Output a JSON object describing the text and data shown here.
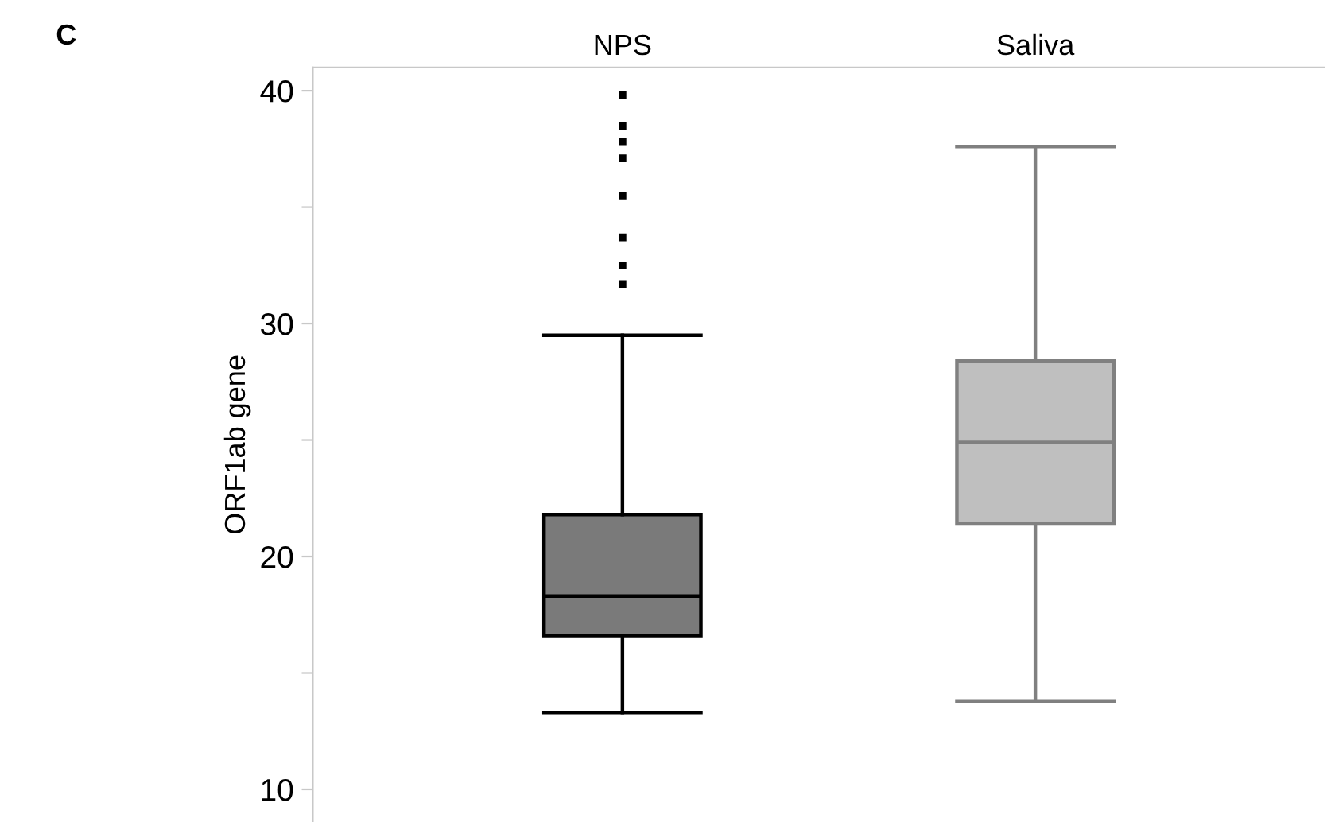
{
  "chart_data": {
    "type": "box",
    "title": "C",
    "ylabel": "ORF1ab gene",
    "categories": [
      "NPS",
      "Saliva"
    ],
    "colors": [
      "#7a7a7a",
      "#bfbfbf"
    ],
    "boxes": [
      {
        "low": 13.3,
        "q1": 16.6,
        "median": 18.3,
        "q3": 21.8,
        "high": 29.5,
        "outliers": [
          39.8,
          38.5,
          37.8,
          37.1,
          35.5,
          33.7,
          32.5,
          31.7
        ]
      },
      {
        "low": 13.8,
        "q1": 21.4,
        "median": 24.9,
        "q3": 28.4,
        "high": 37.6
      }
    ],
    "ylim": [
      8.6,
      41
    ],
    "yticks": [
      10,
      {
        "value": 15,
        "label": null
      },
      20,
      {
        "value": 25,
        "label": null
      },
      30,
      {
        "value": 35,
        "label": null
      },
      40
    ],
    "grid": false,
    "legend": false
  }
}
